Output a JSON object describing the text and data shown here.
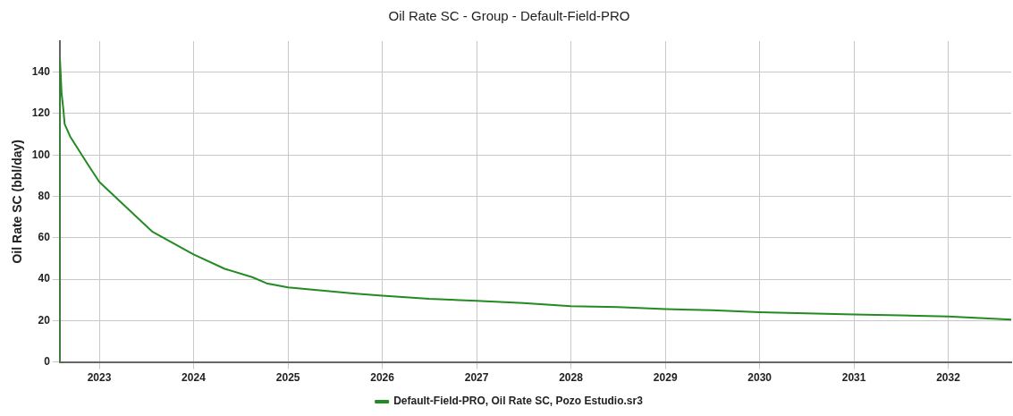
{
  "chart_data": {
    "type": "line",
    "title": "Oil Rate SC - Group - Default-Field-PRO",
    "ylabel": "Oil Rate SC (bbl/day)",
    "x": [
      "2022-08-01",
      "2022-08-02",
      "2022-08-08",
      "2022-08-15",
      "2022-08-20",
      "2022-09-10",
      "2022-11-15",
      "2023-01-01",
      "2023-03-10",
      "2023-07-25",
      "2024-01-01",
      "2024-05-01",
      "2024-08-15",
      "2024-10-10",
      "2025-01-01",
      "2025-09-20",
      "2026-01-01",
      "2026-07-01",
      "2027-01-01",
      "2027-07-01",
      "2028-01-01",
      "2028-07-01",
      "2029-01-01",
      "2029-07-01",
      "2030-01-01",
      "2030-07-01",
      "2031-01-01",
      "2031-07-01",
      "2032-01-01",
      "2032-09-01"
    ],
    "series": [
      {
        "name": "Default-Field-PRO, Oil Rate SC, Pozo Estudio.sr3",
        "color": "#228b22",
        "values": [
          0,
          146,
          130,
          122,
          115,
          109,
          96,
          87,
          79,
          63,
          52,
          45,
          41,
          38,
          36,
          33,
          32,
          30.5,
          29.5,
          28.5,
          27,
          26.5,
          25.5,
          25,
          24,
          23.5,
          23,
          22.5,
          22,
          20.5
        ]
      }
    ],
    "xlim": [
      "2022-08-01",
      "2032-09-01"
    ],
    "xticks": [
      {
        "value": "2023-01-01",
        "label": "2023"
      },
      {
        "value": "2024-01-01",
        "label": "2024"
      },
      {
        "value": "2025-01-01",
        "label": "2025"
      },
      {
        "value": "2026-01-01",
        "label": "2026"
      },
      {
        "value": "2027-01-01",
        "label": "2027"
      },
      {
        "value": "2028-01-01",
        "label": "2028"
      },
      {
        "value": "2029-01-01",
        "label": "2029"
      },
      {
        "value": "2030-01-01",
        "label": "2030"
      },
      {
        "value": "2031-01-01",
        "label": "2031"
      },
      {
        "value": "2032-01-01",
        "label": "2032"
      }
    ],
    "ylim": [
      0,
      155
    ],
    "yticks": [
      0,
      20,
      40,
      60,
      80,
      100,
      120,
      140
    ],
    "grid": true,
    "legend": "bottom",
    "marker": "none",
    "line_style": "solid"
  }
}
